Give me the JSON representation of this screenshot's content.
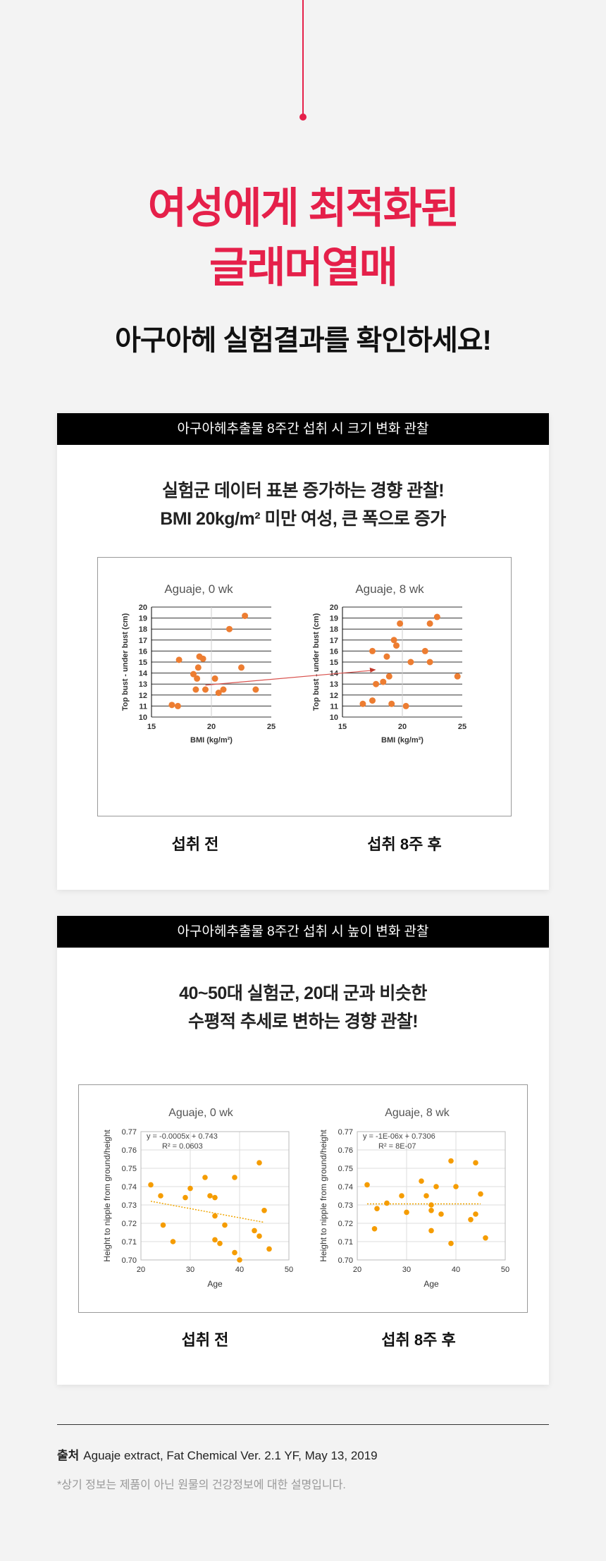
{
  "hero": {
    "title_line1": "여성에게 최적화된",
    "title_line2": "글래머열매",
    "subtitle": "아구아헤 실험결과를 확인하세요!"
  },
  "colors": {
    "accent": "#e5204a",
    "dot": "#ed7d31",
    "dot2": "#f59c00"
  },
  "section1": {
    "header": "아구아헤추출물 8주간 섭취 시 크기 변화 관찰",
    "lead_line1": "실험군 데이터 표본 증가하는 경향 관찰!",
    "lead_line2": "BMI 20kg/m² 미만 여성, 큰 폭으로 증가",
    "caption_before": "섭취 전",
    "caption_after": "섭취 8주 후"
  },
  "section2": {
    "header": "아구아헤추출물 8주간 섭취 시 높이 변화 관찰",
    "lead_line1": "40~50대 실험군, 20대 군과 비슷한",
    "lead_line2": "수평적 추세로 변하는 경향 관찰!",
    "caption_before": "섭취 전",
    "caption_after": "섭취 8주 후"
  },
  "chart_data": [
    {
      "type": "scatter",
      "title": "Aguaje, 0 wk",
      "xlabel": "BMI (kg/m²)",
      "ylabel": "Top bust - under bust (cm)",
      "xlim": [
        15,
        25
      ],
      "ylim": [
        10,
        20
      ],
      "xticks": [
        "15",
        "20",
        "25"
      ],
      "yticks": [
        "10",
        "11",
        "12",
        "13",
        "14",
        "15",
        "16",
        "17",
        "18",
        "19",
        "20"
      ],
      "points": [
        [
          16.7,
          11.1
        ],
        [
          17.2,
          11.0
        ],
        [
          17.3,
          15.2
        ],
        [
          18.5,
          13.9
        ],
        [
          18.7,
          12.5
        ],
        [
          18.9,
          14.5
        ],
        [
          18.8,
          13.5
        ],
        [
          19.0,
          15.5
        ],
        [
          19.3,
          15.3
        ],
        [
          19.5,
          12.5
        ],
        [
          20.3,
          13.5
        ],
        [
          20.6,
          12.2
        ],
        [
          21.0,
          12.5
        ],
        [
          21.5,
          18.0
        ],
        [
          22.5,
          14.5
        ],
        [
          22.8,
          19.2
        ],
        [
          23.7,
          12.5
        ]
      ]
    },
    {
      "type": "scatter",
      "title": "Aguaje, 8 wk",
      "xlabel": "BMI (kg/m²)",
      "ylabel": "Top bust - under bust (cm)",
      "xlim": [
        15,
        25
      ],
      "ylim": [
        10,
        20
      ],
      "xticks": [
        "15",
        "20",
        "25"
      ],
      "yticks": [
        "10",
        "11",
        "12",
        "13",
        "14",
        "15",
        "16",
        "17",
        "18",
        "19",
        "20"
      ],
      "points": [
        [
          16.7,
          11.2
        ],
        [
          17.5,
          11.5
        ],
        [
          17.5,
          16.0
        ],
        [
          17.8,
          13.0
        ],
        [
          18.4,
          13.2
        ],
        [
          18.7,
          15.5
        ],
        [
          18.9,
          13.7
        ],
        [
          19.1,
          11.2
        ],
        [
          19.3,
          17.0
        ],
        [
          19.5,
          16.5
        ],
        [
          19.8,
          18.5
        ],
        [
          20.3,
          11.0
        ],
        [
          20.7,
          15.0
        ],
        [
          21.9,
          16.0
        ],
        [
          22.3,
          15.0
        ],
        [
          22.3,
          18.5
        ],
        [
          22.9,
          19.1
        ],
        [
          24.6,
          13.7
        ]
      ]
    },
    {
      "type": "scatter",
      "title": "Aguaje, 0 wk",
      "xlabel": "Age",
      "ylabel": "Height to nipple from ground/height",
      "xlim": [
        20,
        50
      ],
      "ylim": [
        0.7,
        0.77
      ],
      "xticks": [
        "20",
        "30",
        "40",
        "50"
      ],
      "yticks": [
        "0.70",
        "0.71",
        "0.72",
        "0.73",
        "0.74",
        "0.75",
        "0.76",
        "0.77"
      ],
      "trendline_equation": "y = -0.0005x + 0.743",
      "r_squared": "R² = 0.0603",
      "trend": [
        [
          22,
          0.732
        ],
        [
          45,
          0.7205
        ]
      ],
      "points": [
        [
          22,
          0.741
        ],
        [
          24,
          0.735
        ],
        [
          24.5,
          0.719
        ],
        [
          26.5,
          0.71
        ],
        [
          29,
          0.734
        ],
        [
          30,
          0.739
        ],
        [
          33,
          0.745
        ],
        [
          34,
          0.735
        ],
        [
          35,
          0.734
        ],
        [
          35,
          0.724
        ],
        [
          35,
          0.711
        ],
        [
          36,
          0.709
        ],
        [
          37,
          0.719
        ],
        [
          39,
          0.745
        ],
        [
          39,
          0.704
        ],
        [
          40,
          0.7
        ],
        [
          43,
          0.716
        ],
        [
          44,
          0.753
        ],
        [
          44,
          0.713
        ],
        [
          45,
          0.727
        ],
        [
          46,
          0.706
        ]
      ]
    },
    {
      "type": "scatter",
      "title": "Aguaje, 8 wk",
      "xlabel": "Age",
      "ylabel": "Height to nipple from ground/height",
      "xlim": [
        20,
        50
      ],
      "ylim": [
        0.7,
        0.77
      ],
      "xticks": [
        "20",
        "30",
        "40",
        "50"
      ],
      "yticks": [
        "0.70",
        "0.71",
        "0.72",
        "0.73",
        "0.74",
        "0.75",
        "0.76",
        "0.77"
      ],
      "trendline_equation": "y = -1E-06x + 0.7306",
      "r_squared": "R² = 8E-07",
      "trend": [
        [
          22,
          0.7306
        ],
        [
          45,
          0.7306
        ]
      ],
      "points": [
        [
          22,
          0.741
        ],
        [
          23.5,
          0.717
        ],
        [
          24,
          0.728
        ],
        [
          26,
          0.731
        ],
        [
          29,
          0.735
        ],
        [
          30,
          0.726
        ],
        [
          33,
          0.743
        ],
        [
          34,
          0.735
        ],
        [
          35,
          0.73
        ],
        [
          35,
          0.727
        ],
        [
          35,
          0.716
        ],
        [
          36,
          0.74
        ],
        [
          37,
          0.725
        ],
        [
          39,
          0.754
        ],
        [
          39,
          0.709
        ],
        [
          40,
          0.74
        ],
        [
          43,
          0.722
        ],
        [
          44,
          0.753
        ],
        [
          44,
          0.725
        ],
        [
          45,
          0.736
        ],
        [
          46,
          0.712
        ]
      ]
    }
  ],
  "footer": {
    "source_label": "출처",
    "source_text": "Aguaje extract, Fat Chemical Ver. 2.1 YF, May 13, 2019",
    "note": "*상기 정보는 제품이 아닌 원물의 건강정보에 대한 설명입니다."
  }
}
